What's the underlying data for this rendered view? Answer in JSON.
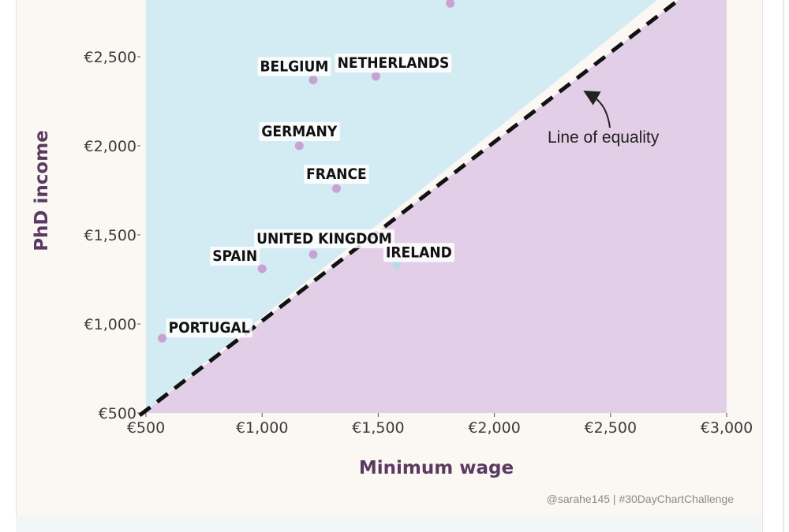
{
  "chart_data": {
    "type": "scatter",
    "xlabel": "Minimum wage",
    "ylabel": "PhD income",
    "xlim": [
      500,
      3000
    ],
    "ylim": [
      500,
      2800
    ],
    "x_ticks": [
      500,
      1000,
      1500,
      2000,
      2500,
      3000
    ],
    "x_tick_labels": [
      "€500",
      "€1,000",
      "€1,500",
      "€2,000",
      "€2,500",
      "€3,000"
    ],
    "y_ticks": [
      500,
      1000,
      1500,
      2000,
      2500
    ],
    "y_tick_labels": [
      "€500",
      "€1,000",
      "€1,500",
      "€2,000",
      "€2,500"
    ],
    "points": [
      {
        "label": "PORTUGAL",
        "x": 570,
        "y": 920
      },
      {
        "label": "SPAIN",
        "x": 1000,
        "y": 1310
      },
      {
        "label": "UNITED KINGDOM",
        "x": 1220,
        "y": 1390
      },
      {
        "label": "IRELAND",
        "x": 1580,
        "y": 1330
      },
      {
        "label": "FRANCE",
        "x": 1320,
        "y": 1760
      },
      {
        "label": "GERMANY",
        "x": 1160,
        "y": 2000
      },
      {
        "label": "BELGIUM",
        "x": 1220,
        "y": 2370
      },
      {
        "label": "NETHERLANDS",
        "x": 1490,
        "y": 2390
      },
      {
        "label": "",
        "x": 1810,
        "y": 2800
      }
    ],
    "equality_line": {
      "label": "Line of equality"
    },
    "region_colors": {
      "above": "#d3ebf2",
      "below": "#e2cfe7"
    },
    "point_colors": {
      "default": "#c9a2d4",
      "below_line": "#b6dbe6"
    },
    "line_color": "#111111"
  },
  "caption": "@sarahe145 | #30DayChartChallenge"
}
